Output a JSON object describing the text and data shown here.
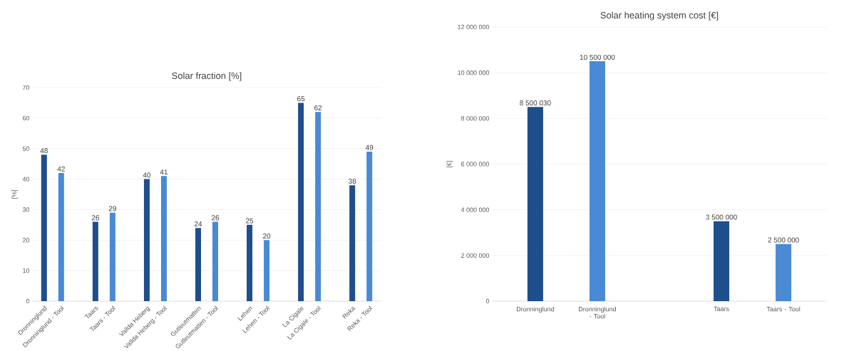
{
  "chart_data": [
    {
      "type": "bar",
      "title": "Solar fraction [%]",
      "ylabel": "[%]",
      "categories": [
        "Dronninglund",
        "Dronninglund - Tool",
        null,
        "Taars",
        "Taars - Tool",
        null,
        "Vallda Heberg",
        "Vallda Heberg - Tool",
        null,
        "Gutleutmatten",
        "Gutleutmatten - Tool",
        null,
        "Lehen",
        "Lehen - Tool",
        null,
        "La Cigale",
        "La Cigale - Tool",
        null,
        "Reka",
        "Reka - Tool"
      ],
      "values": [
        48,
        42,
        null,
        26,
        29,
        null,
        40,
        41,
        null,
        24,
        26,
        null,
        25,
        20,
        null,
        65,
        62,
        null,
        38,
        49
      ],
      "colors": [
        "#1f4e8c",
        "#4a8ad4",
        null,
        "#1f4e8c",
        "#4a8ad4",
        null,
        "#1f4e8c",
        "#4a8ad4",
        null,
        "#1f4e8c",
        "#4a8ad4",
        null,
        "#1f4e8c",
        "#4a8ad4",
        null,
        "#1f4e8c",
        "#4a8ad4",
        null,
        "#1f4e8c",
        "#4a8ad4"
      ],
      "ylim": [
        0,
        70
      ],
      "yticks": [
        0,
        10,
        20,
        30,
        40,
        50,
        60,
        70
      ],
      "grid": "y",
      "data_labels": true
    },
    {
      "type": "bar",
      "title": "Solar heating system cost [€]",
      "ylabel": "[€]",
      "categories": [
        "Dronninglund",
        "Dronninglund - Tool",
        null,
        "Taars",
        "Taars - Tool"
      ],
      "values": [
        8500030,
        10500000,
        null,
        3500000,
        2500000
      ],
      "value_labels": [
        "8 500 030",
        "10 500 000",
        null,
        "3 500 000",
        "2 500 000"
      ],
      "colors": [
        "#1f4e8c",
        "#4a8ad4",
        null,
        "#1f4e8c",
        "#4a8ad4"
      ],
      "ylim": [
        0,
        12000000
      ],
      "yticks": [
        {
          "value": 0,
          "label": "0"
        },
        {
          "value": 2000000,
          "label": "2 000 000"
        },
        {
          "value": 4000000,
          "label": "4 000 000"
        },
        {
          "value": 6000000,
          "label": "6 000 000"
        },
        {
          "value": 8000000,
          "label": "8 000 000"
        },
        {
          "value": 10000000,
          "label": "10 000 000"
        },
        {
          "value": 12000000,
          "label": "12 000 000"
        }
      ],
      "grid": "y"
    }
  ]
}
